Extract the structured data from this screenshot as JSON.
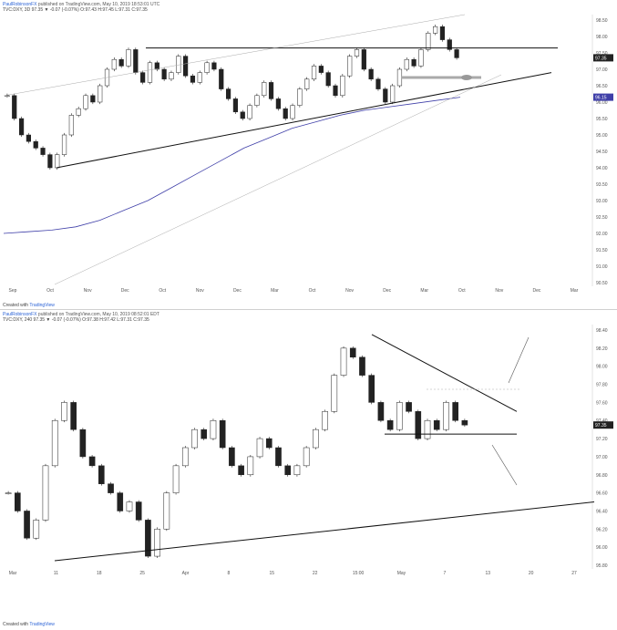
{
  "top": {
    "header": {
      "author": "PaulRobinsonFX",
      "published": "published on TradingView.com, May 10, 2019 18:53:01 UTC",
      "symbol_line": "TVC:DXY, 3D  97.35 ▼ -0.07 (-0.07%) O:97.43 H:97.45 L:97.31 C:97.35"
    },
    "footer": {
      "created": "Created with",
      "brand": "TradingView"
    }
  },
  "bottom": {
    "header": {
      "author": "PaulRobinsonFX",
      "published": "published on TradingView.com, May 10, 2019 08:52:01 EDT",
      "symbol_line": "TVC:DXY, 240  97.35 ▼ -0.07 (-0.07%) O:97.38 H:97.42 L:97.31 C:97.35"
    },
    "footer": {
      "created": "Created with",
      "brand": "TradingView"
    }
  },
  "chart_data": [
    {
      "type": "candlestick",
      "title": "",
      "timeframe": "3D",
      "ylim": [
        90.5,
        98.5
      ],
      "y_ticks": [
        "98.50",
        "98.00",
        "97.50",
        "97.00",
        "96.50",
        "96.00",
        "95.50",
        "95.00",
        "94.50",
        "94.00",
        "93.50",
        "93.00",
        "92.50",
        "92.00",
        "91.50",
        "91.00",
        "90.50"
      ],
      "x_ticks": [
        "Sep",
        "Oct",
        "Nov",
        "Dec",
        "Oct",
        "Nov",
        "Dec",
        "Mar",
        "Oct",
        "Nov",
        "Dec",
        "Mar",
        "Oct",
        "Nov",
        "Dec",
        "Mar"
      ],
      "last_price": "97.35",
      "ma_label": "96.15",
      "grid": false,
      "series": [
        {
          "type": "candles",
          "values": [
            96.2,
            95.5,
            95.0,
            94.8,
            94.6,
            94.4,
            94.0,
            94.4,
            95.0,
            95.6,
            95.8,
            96.2,
            96.0,
            96.5,
            97.0,
            97.3,
            97.1,
            97.6,
            96.9,
            96.6,
            97.2,
            97.0,
            96.7,
            96.9,
            97.4,
            96.8,
            96.6,
            96.9,
            97.2,
            97.0,
            96.4,
            96.1,
            95.7,
            95.5,
            95.9,
            96.2,
            96.6,
            96.1,
            95.8,
            95.5,
            95.9,
            96.4,
            96.7,
            97.1,
            96.9,
            96.5,
            96.2,
            96.8,
            97.4,
            97.6,
            97.0,
            96.7,
            96.4,
            96.0,
            96.5,
            97.0,
            97.3,
            97.1,
            97.6,
            98.1,
            98.3,
            97.9,
            97.6,
            97.35
          ]
        },
        {
          "type": "moving_average",
          "values": [
            92.0,
            92.05,
            92.1,
            92.2,
            92.4,
            92.7,
            93.0,
            93.4,
            93.8,
            94.2,
            94.6,
            94.9,
            95.2,
            95.4,
            95.6,
            95.75,
            95.85,
            95.95,
            96.05,
            96.15
          ]
        }
      ],
      "annotations": {
        "horizontal_resistance": 97.65,
        "support_zone": 96.75,
        "rising_trendline": {
          "from": [
            94.0,
            "Oct"
          ],
          "to": [
            96.9,
            "May"
          ]
        }
      }
    },
    {
      "type": "candlestick",
      "title": "",
      "timeframe": "240",
      "ylim": [
        95.8,
        98.4
      ],
      "y_ticks": [
        "98.40",
        "98.20",
        "98.00",
        "97.80",
        "97.60",
        "97.40",
        "97.20",
        "97.00",
        "96.80",
        "96.60",
        "96.40",
        "96.20",
        "96.00",
        "95.80"
      ],
      "x_ticks": [
        "Mar",
        "11",
        "18",
        "25",
        "Apr",
        "8",
        "15",
        "22",
        "15:00",
        "May",
        "7",
        "13",
        "20",
        "27"
      ],
      "last_price": "97.35",
      "grid": false,
      "series": [
        {
          "type": "candles",
          "values": [
            96.6,
            96.4,
            96.1,
            96.3,
            96.9,
            97.4,
            97.6,
            97.3,
            97.0,
            96.9,
            96.7,
            96.6,
            96.4,
            96.5,
            96.3,
            95.9,
            96.2,
            96.6,
            96.9,
            97.1,
            97.3,
            97.2,
            97.4,
            97.1,
            96.9,
            96.8,
            97.0,
            97.2,
            97.1,
            96.9,
            96.8,
            96.9,
            97.1,
            97.3,
            97.5,
            97.9,
            98.2,
            98.1,
            97.9,
            97.6,
            97.4,
            97.3,
            97.6,
            97.5,
            97.2,
            97.4,
            97.3,
            97.6,
            97.4,
            97.35
          ]
        }
      ],
      "annotations": {
        "support": 97.25,
        "descending_trendline": {
          "from": 98.35,
          "to": 97.5
        },
        "rising_trendline": {
          "from": 95.85,
          "to": 96.5
        }
      }
    }
  ]
}
